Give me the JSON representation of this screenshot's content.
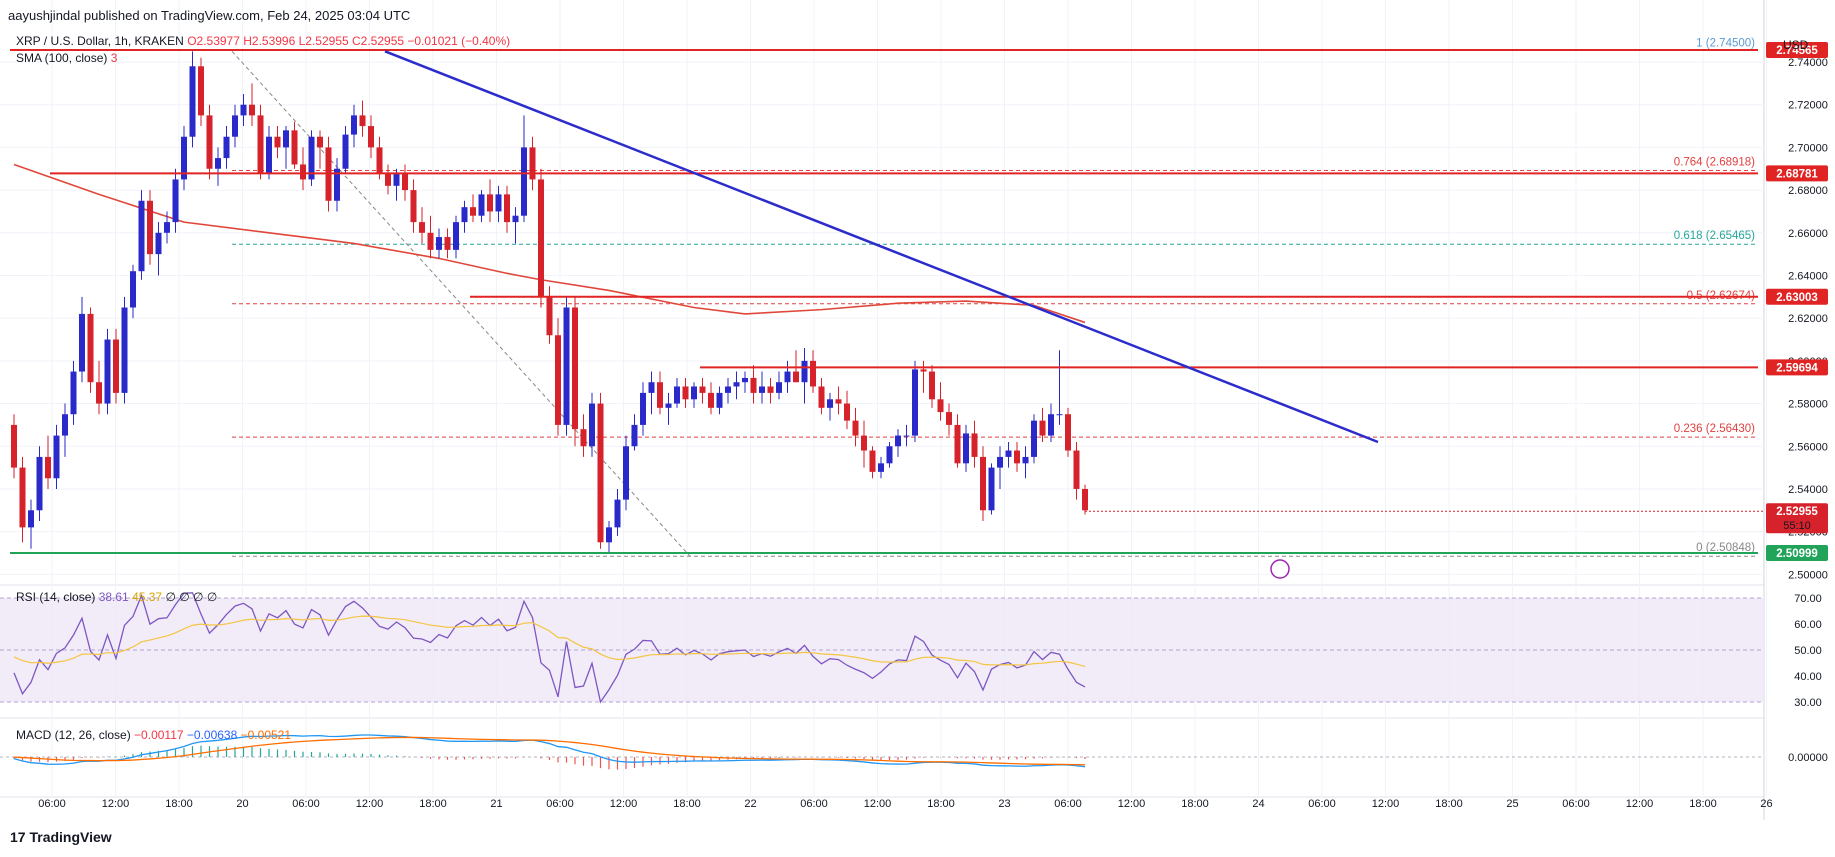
{
  "header": {
    "publisher_line": "aayushjindal published on TradingView.com, Feb 24, 2025 03:04 UTC",
    "currency": "USD"
  },
  "legend": {
    "symbol": "XRP / U.S. Dollar, 1h, KRAKEN",
    "ohlc": "O2.53977 H2.53996 L2.52955 C2.52955 −0.01021 (−0.40%)",
    "sma_label": "SMA (100, close)",
    "sma_value": "3",
    "rsi_label": "RSI (14, close)",
    "rsi_value1": "38.61",
    "rsi_value2": "45.37",
    "rsi_extra": "∅ ∅ ∅ ∅",
    "macd_label": "MACD (12, 26, close)",
    "macd_v1": "−0.00117",
    "macd_v2": "−0.00638",
    "macd_v3": "−0.00521"
  },
  "colors": {
    "up": "#2a2aca",
    "down": "#d6222a",
    "trendline": "#2c2ccc",
    "level": "#e02424",
    "fib_dashed": "#e04040",
    "fib_618": "#26a69a",
    "sma": "#e0473a",
    "support": "#22a35a",
    "rsi": "#7e57c2",
    "rsi_ma": "#f5c542",
    "macd": "#2196f3",
    "signal": "#ff6d00"
  },
  "chart_data": {
    "type": "candlestick",
    "symbol": "XRP / U.S. Dollar",
    "interval": "1h",
    "price_axis": {
      "ticks": [
        "2.74000",
        "2.72000",
        "2.70000",
        "2.68000",
        "2.66000",
        "2.64000",
        "2.62000",
        "2.60000",
        "2.58000",
        "2.56000",
        "2.54000",
        "2.52000",
        "2.50000"
      ],
      "range": [
        2.495,
        2.755
      ]
    },
    "time_axis": [
      "06:00",
      "12:00",
      "18:00",
      "20",
      "06:00",
      "12:00",
      "18:00",
      "21",
      "06:00",
      "12:00",
      "18:00",
      "22",
      "06:00",
      "12:00",
      "18:00",
      "23",
      "06:00",
      "12:00",
      "18:00",
      "24",
      "06:00",
      "12:00",
      "18:00",
      "25",
      "06:00",
      "12:00",
      "18:00",
      "26"
    ],
    "candles_ohlc": [
      [
        2.57,
        2.575,
        2.545,
        2.55
      ],
      [
        2.55,
        2.555,
        2.515,
        2.522
      ],
      [
        2.522,
        2.535,
        2.512,
        2.53
      ],
      [
        2.53,
        2.56,
        2.525,
        2.555
      ],
      [
        2.555,
        2.565,
        2.54,
        2.545
      ],
      [
        2.545,
        2.57,
        2.54,
        2.565
      ],
      [
        2.565,
        2.58,
        2.555,
        2.575
      ],
      [
        2.575,
        2.6,
        2.57,
        2.595
      ],
      [
        2.595,
        2.63,
        2.59,
        2.622
      ],
      [
        2.622,
        2.625,
        2.585,
        2.59
      ],
      [
        2.59,
        2.6,
        2.575,
        2.58
      ],
      [
        2.58,
        2.615,
        2.575,
        2.61
      ],
      [
        2.61,
        2.615,
        2.58,
        2.585
      ],
      [
        2.585,
        2.63,
        2.58,
        2.625
      ],
      [
        2.625,
        2.645,
        2.62,
        2.642
      ],
      [
        2.642,
        2.68,
        2.638,
        2.675
      ],
      [
        2.675,
        2.68,
        2.645,
        2.65
      ],
      [
        2.65,
        2.665,
        2.64,
        2.66
      ],
      [
        2.66,
        2.67,
        2.655,
        2.665
      ],
      [
        2.665,
        2.69,
        2.66,
        2.685
      ],
      [
        2.685,
        2.71,
        2.68,
        2.705
      ],
      [
        2.705,
        2.745,
        2.7,
        2.738
      ],
      [
        2.738,
        2.742,
        2.71,
        2.715
      ],
      [
        2.715,
        2.72,
        2.685,
        2.69
      ],
      [
        2.69,
        2.7,
        2.682,
        2.695
      ],
      [
        2.695,
        2.71,
        2.69,
        2.705
      ],
      [
        2.705,
        2.72,
        2.7,
        2.715
      ],
      [
        2.715,
        2.725,
        2.71,
        2.72
      ],
      [
        2.72,
        2.73,
        2.71,
        2.715
      ],
      [
        2.715,
        2.72,
        2.685,
        2.688
      ],
      [
        2.688,
        2.71,
        2.685,
        2.705
      ],
      [
        2.705,
        2.71,
        2.695,
        2.7
      ],
      [
        2.7,
        2.71,
        2.69,
        2.708
      ],
      [
        2.708,
        2.712,
        2.69,
        2.692
      ],
      [
        2.692,
        2.7,
        2.68,
        2.685
      ],
      [
        2.685,
        2.708,
        2.682,
        2.705
      ],
      [
        2.705,
        2.708,
        2.69,
        2.7
      ],
      [
        2.7,
        2.705,
        2.67,
        2.675
      ],
      [
        2.675,
        2.695,
        2.67,
        2.69
      ],
      [
        2.69,
        2.71,
        2.688,
        2.706
      ],
      [
        2.706,
        2.72,
        2.7,
        2.715
      ],
      [
        2.715,
        2.722,
        2.705,
        2.71
      ],
      [
        2.71,
        2.715,
        2.695,
        2.7
      ],
      [
        2.7,
        2.705,
        2.685,
        2.688
      ],
      [
        2.688,
        2.692,
        2.678,
        2.682
      ],
      [
        2.682,
        2.69,
        2.675,
        2.688
      ],
      [
        2.688,
        2.692,
        2.675,
        2.68
      ],
      [
        2.68,
        2.685,
        2.66,
        2.665
      ],
      [
        2.665,
        2.672,
        2.655,
        2.66
      ],
      [
        2.66,
        2.668,
        2.648,
        2.652
      ],
      [
        2.652,
        2.662,
        2.648,
        2.658
      ],
      [
        2.658,
        2.662,
        2.648,
        2.652
      ],
      [
        2.652,
        2.668,
        2.648,
        2.665
      ],
      [
        2.665,
        2.675,
        2.66,
        2.672
      ],
      [
        2.672,
        2.678,
        2.665,
        2.668
      ],
      [
        2.668,
        2.68,
        2.665,
        2.678
      ],
      [
        2.678,
        2.685,
        2.665,
        2.67
      ],
      [
        2.67,
        2.682,
        2.665,
        2.678
      ],
      [
        2.678,
        2.682,
        2.66,
        2.665
      ],
      [
        2.665,
        2.672,
        2.655,
        2.668
      ],
      [
        2.668,
        2.715,
        2.665,
        2.7
      ],
      [
        2.7,
        2.705,
        2.68,
        2.685
      ],
      [
        2.685,
        2.69,
        2.625,
        2.63
      ],
      [
        2.63,
        2.635,
        2.608,
        2.612
      ],
      [
        2.612,
        2.62,
        2.565,
        2.57
      ],
      [
        2.57,
        2.63,
        2.565,
        2.625
      ],
      [
        2.625,
        2.63,
        2.56,
        2.568
      ],
      [
        2.568,
        2.575,
        2.555,
        2.56
      ],
      [
        2.56,
        2.585,
        2.555,
        2.58
      ],
      [
        2.58,
        2.585,
        2.512,
        2.515
      ],
      [
        2.515,
        2.525,
        2.51,
        2.522
      ],
      [
        2.522,
        2.54,
        2.518,
        2.535
      ],
      [
        2.535,
        2.565,
        2.53,
        2.56
      ],
      [
        2.56,
        2.575,
        2.558,
        2.57
      ],
      [
        2.57,
        2.59,
        2.565,
        2.585
      ],
      [
        2.585,
        2.595,
        2.575,
        2.59
      ],
      [
        2.59,
        2.595,
        2.575,
        2.578
      ],
      [
        2.578,
        2.585,
        2.57,
        2.58
      ],
      [
        2.58,
        2.592,
        2.578,
        2.588
      ],
      [
        2.588,
        2.592,
        2.578,
        2.582
      ],
      [
        2.582,
        2.59,
        2.578,
        2.588
      ],
      [
        2.588,
        2.592,
        2.58,
        2.585
      ],
      [
        2.585,
        2.59,
        2.575,
        2.578
      ],
      [
        2.578,
        2.588,
        2.575,
        2.585
      ],
      [
        2.585,
        2.592,
        2.58,
        2.588
      ],
      [
        2.588,
        2.595,
        2.582,
        2.59
      ],
      [
        2.59,
        2.595,
        2.585,
        2.592
      ],
      [
        2.592,
        2.598,
        2.58,
        2.585
      ],
      [
        2.585,
        2.595,
        2.58,
        2.588
      ],
      [
        2.588,
        2.592,
        2.58,
        2.585
      ],
      [
        2.585,
        2.595,
        2.582,
        2.59
      ],
      [
        2.59,
        2.6,
        2.585,
        2.595
      ],
      [
        2.595,
        2.605,
        2.59,
        2.59
      ],
      [
        2.59,
        2.606,
        2.58,
        2.6
      ],
      [
        2.6,
        2.605,
        2.585,
        2.588
      ],
      [
        2.588,
        2.592,
        2.575,
        2.578
      ],
      [
        2.578,
        2.585,
        2.572,
        2.582
      ],
      [
        2.582,
        2.588,
        2.575,
        2.58
      ],
      [
        2.58,
        2.586,
        2.568,
        2.572
      ],
      [
        2.572,
        2.578,
        2.56,
        2.565
      ],
      [
        2.565,
        2.572,
        2.55,
        2.558
      ],
      [
        2.558,
        2.56,
        2.545,
        2.548
      ],
      [
        2.548,
        2.555,
        2.545,
        2.552
      ],
      [
        2.552,
        2.562,
        2.55,
        2.56
      ],
      [
        2.56,
        2.568,
        2.555,
        2.565
      ],
      [
        2.565,
        2.57,
        2.56,
        2.565
      ],
      [
        2.565,
        2.6,
        2.562,
        2.596
      ],
      [
        2.596,
        2.6,
        2.585,
        2.595
      ],
      [
        2.595,
        2.598,
        2.578,
        2.582
      ],
      [
        2.582,
        2.59,
        2.572,
        2.576
      ],
      [
        2.576,
        2.58,
        2.565,
        2.57
      ],
      [
        2.57,
        2.575,
        2.55,
        2.552
      ],
      [
        2.552,
        2.57,
        2.548,
        2.566
      ],
      [
        2.566,
        2.572,
        2.55,
        2.555
      ],
      [
        2.555,
        2.56,
        2.525,
        2.53
      ],
      [
        2.53,
        2.552,
        2.528,
        2.55
      ],
      [
        2.55,
        2.56,
        2.54,
        2.555
      ],
      [
        2.555,
        2.562,
        2.55,
        2.558
      ],
      [
        2.558,
        2.562,
        2.548,
        2.552
      ],
      [
        2.552,
        2.56,
        2.545,
        2.555
      ],
      [
        2.555,
        2.575,
        2.552,
        2.572
      ],
      [
        2.572,
        2.578,
        2.562,
        2.565
      ],
      [
        2.565,
        2.58,
        2.562,
        2.575
      ],
      [
        2.575,
        2.605,
        2.57,
        2.575
      ],
      [
        2.575,
        2.578,
        2.555,
        2.558
      ],
      [
        2.558,
        2.562,
        2.535,
        2.54
      ],
      [
        2.54,
        2.542,
        2.528,
        2.53
      ]
    ],
    "sma100": [
      [
        0,
        2.692
      ],
      [
        10,
        2.678
      ],
      [
        20,
        2.665
      ],
      [
        30,
        2.66
      ],
      [
        40,
        2.655
      ],
      [
        50,
        2.648
      ],
      [
        58,
        2.641
      ],
      [
        62,
        2.638
      ],
      [
        70,
        2.633
      ],
      [
        80,
        2.625
      ],
      [
        86,
        2.622
      ],
      [
        95,
        2.624
      ],
      [
        104,
        2.627
      ],
      [
        112,
        2.628
      ],
      [
        120,
        2.626
      ],
      [
        126,
        2.618
      ]
    ],
    "rsi": {
      "range": [
        25,
        75
      ],
      "ticks": [
        70,
        60,
        50,
        40,
        30
      ],
      "band": [
        30,
        70
      ]
    },
    "macd": {
      "ticks": [
        "0.00000"
      ]
    },
    "levels": {
      "resistance": [
        "2.74565",
        "2.68781",
        "2.63003",
        "2.59694"
      ],
      "support": "2.50999",
      "current_price": "2.52955",
      "countdown": "55:10"
    },
    "fibonacci": [
      {
        "label": "1 (2.74500)",
        "value": 2.745
      },
      {
        "label": "0.764 (2.68918)",
        "value": 2.68918
      },
      {
        "label": "0.618 (2.65465)",
        "value": 2.65465
      },
      {
        "label": "0.5 (2.62674)",
        "value": 2.62674
      },
      {
        "label": "0.236 (2.56430)",
        "value": 2.5643
      },
      {
        "label": "0 (2.50848)",
        "value": 2.50848
      }
    ]
  },
  "footer": {
    "brand": "TradingView"
  }
}
